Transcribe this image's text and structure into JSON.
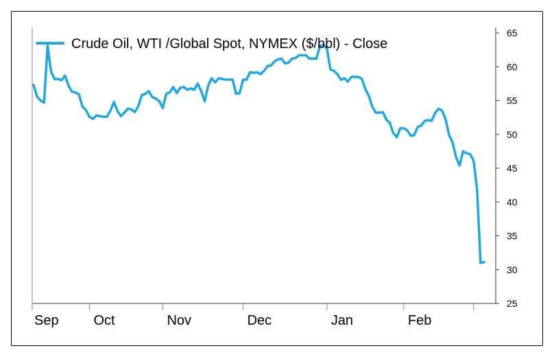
{
  "colors": {
    "line": "#1ea7e1",
    "axis": "#333333",
    "grid_tick": "#888888",
    "frame": "#000000"
  },
  "chart_data": {
    "type": "line",
    "title": "",
    "xlabel": "",
    "ylabel": "",
    "legend": {
      "placement": "top-left",
      "label": "Crude Oil, WTI /Global Spot, NYMEX ($/bbl) - Close"
    },
    "ylim": [
      25,
      65
    ],
    "yticks": [
      25,
      30,
      35,
      40,
      45,
      50,
      55,
      60,
      65
    ],
    "y_axis_side": "right",
    "month_labels": [
      "Sep",
      "Oct",
      "Nov",
      "Dec",
      "Jan",
      "Feb"
    ],
    "month_start_index": [
      0,
      16,
      37,
      60,
      84,
      106
    ],
    "series": [
      {
        "name": "Crude Oil, WTI /Global Spot, NYMEX ($/bbl) - Close",
        "values": [
          57.3,
          55.6,
          55.0,
          54.7,
          63.1,
          59.3,
          58.2,
          58.2,
          58.0,
          58.7,
          57.2,
          56.3,
          56.2,
          55.9,
          54.1,
          53.6,
          52.6,
          52.3,
          52.8,
          52.7,
          52.6,
          52.6,
          53.5,
          54.8,
          53.5,
          52.7,
          53.2,
          53.8,
          53.7,
          53.3,
          54.2,
          55.8,
          56.0,
          56.4,
          55.5,
          55.3,
          54.9,
          53.9,
          56.0,
          56.2,
          57.0,
          56.1,
          56.9,
          57.0,
          56.6,
          56.8,
          56.6,
          57.5,
          56.4,
          54.9,
          57.2,
          58.3,
          57.7,
          58.3,
          58.2,
          58.1,
          58.1,
          58.1,
          56.0,
          56.1,
          58.1,
          58.1,
          59.2,
          59.1,
          59.2,
          58.9,
          59.4,
          60.1,
          60.2,
          60.8,
          61.1,
          61.2,
          60.5,
          60.6,
          61.2,
          61.3,
          61.7,
          61.7,
          61.7,
          61.2,
          61.2,
          61.2,
          63.1,
          63.2,
          62.7,
          59.6,
          59.4,
          58.9,
          58.1,
          58.3,
          57.8,
          58.5,
          58.5,
          58.5,
          58.2,
          56.7,
          55.7,
          54.1,
          53.2,
          53.2,
          53.3,
          52.2,
          51.7,
          50.2,
          49.6,
          50.9,
          50.9,
          50.6,
          49.8,
          49.9,
          51.1,
          51.3,
          52.0,
          52.1,
          52.0,
          53.2,
          53.8,
          53.5,
          52.2,
          49.9,
          48.8,
          46.6,
          45.4,
          47.5,
          47.2,
          47.1,
          46.1,
          41.9,
          31.0,
          31.1
        ]
      }
    ]
  }
}
